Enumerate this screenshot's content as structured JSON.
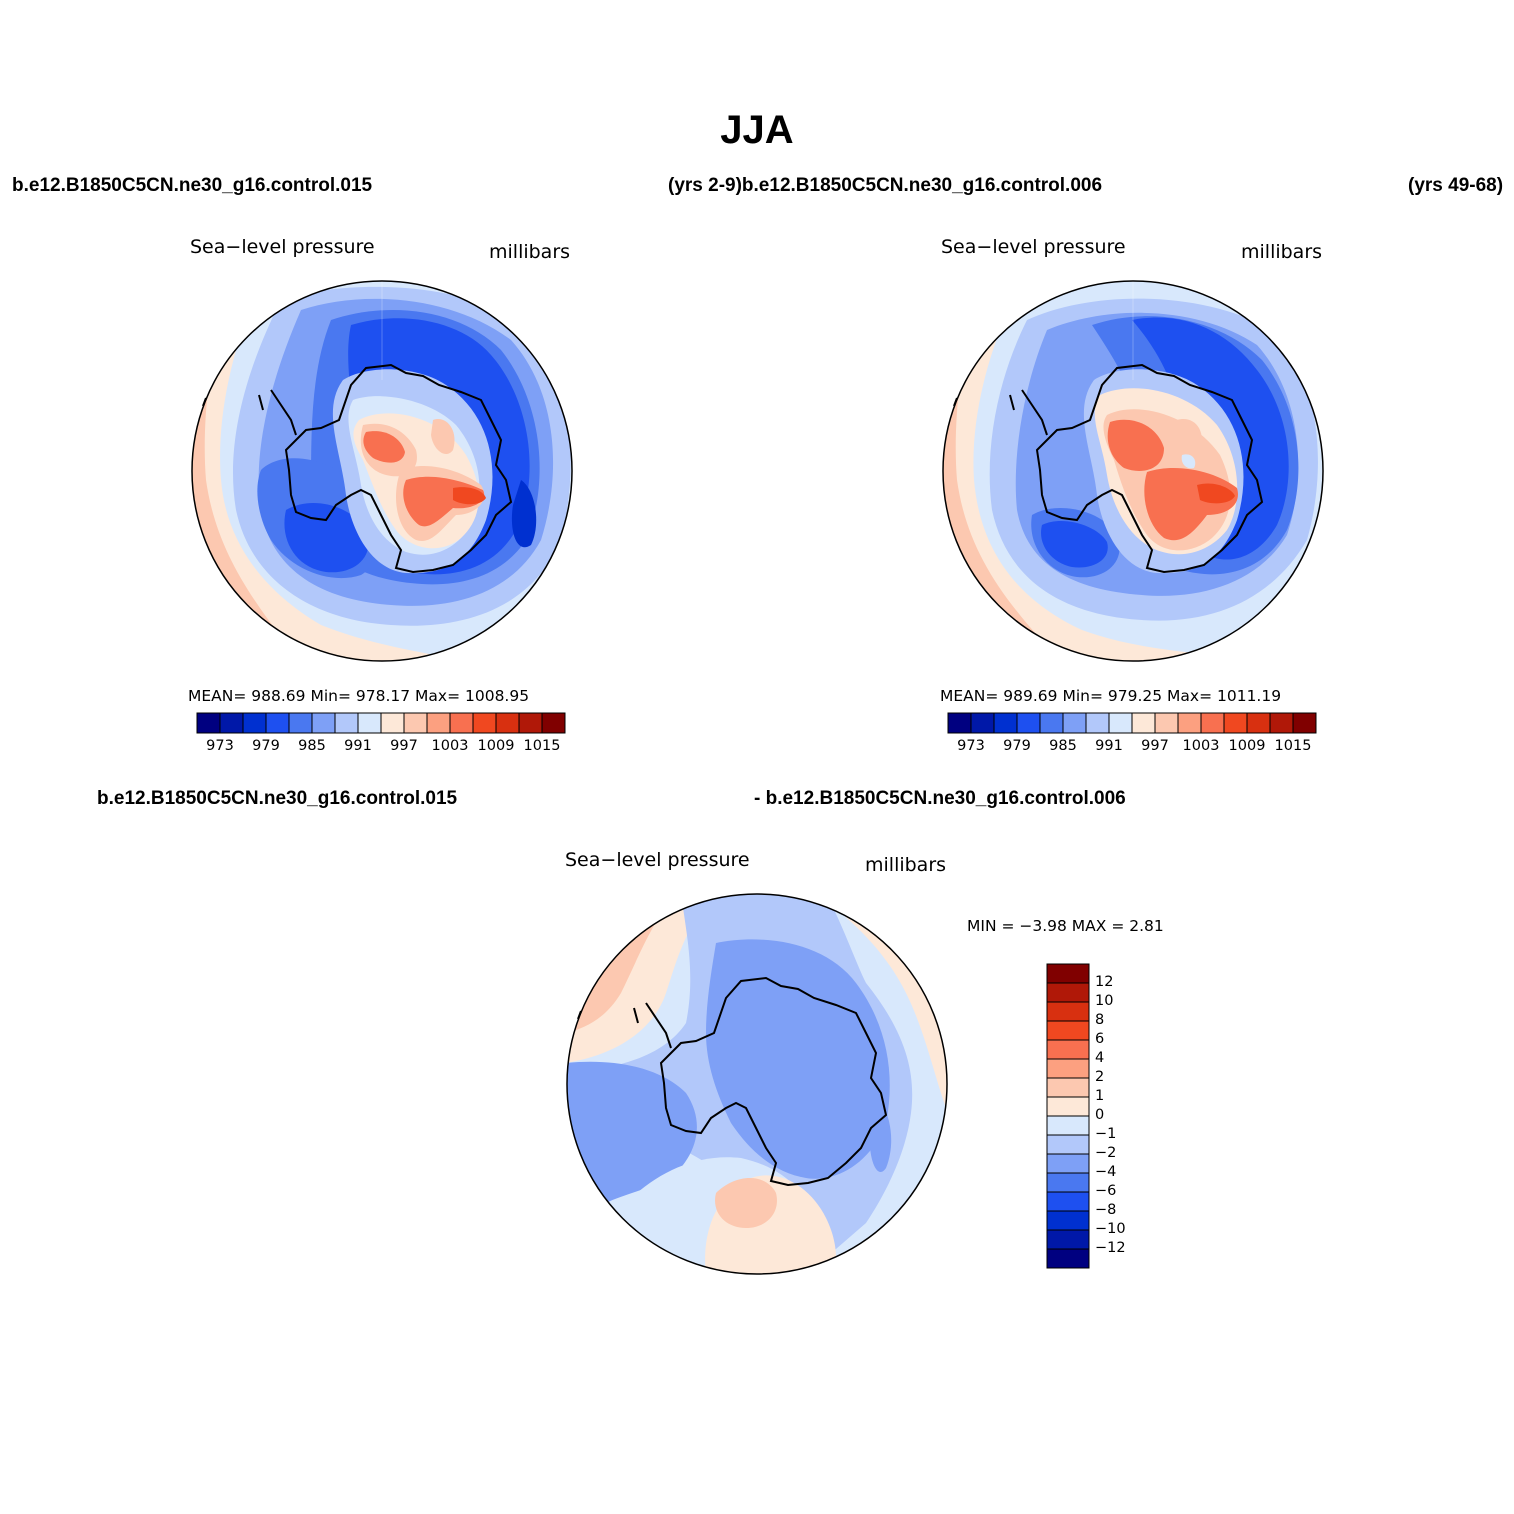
{
  "title": "JJA",
  "top_row": {
    "left_case": "b.e12.B1850C5CN.ne30_g16.control.015",
    "middle_text": "(yrs 2-9)b.e12.B1850C5CN.ne30_g16.control.006",
    "right_text": "(yrs 49-68)"
  },
  "diff_row": {
    "left_case": "b.e12.B1850C5CN.ne30_g16.control.015",
    "right_case": "- b.e12.B1850C5CN.ne30_g16.control.006"
  },
  "panels": [
    {
      "variable": "Sea−level pressure",
      "units": "millibars",
      "stats": "MEAN= 988.69   Min= 978.17   Max= 1008.95"
    },
    {
      "variable": "Sea−level pressure",
      "units": "millibars",
      "stats": "MEAN= 989.69   Min= 979.25   Max= 1011.19"
    },
    {
      "variable": "Sea−level pressure",
      "units": "millibars",
      "stats": "MIN =   −3.98  MAX =    2.81"
    }
  ],
  "colorbar_abs": {
    "colors": [
      "#000080",
      "#0018a8",
      "#0030d0",
      "#1e50f0",
      "#4a78f0",
      "#7ea0f6",
      "#b2c8fa",
      "#d8e8fc",
      "#fde8d8",
      "#fcc8b0",
      "#fca080",
      "#f87050",
      "#f04820",
      "#d83010",
      "#b01808",
      "#800000"
    ],
    "tick_labels": [
      "973",
      "979",
      "985",
      "991",
      "997",
      "1003",
      "1009",
      "1015"
    ]
  },
  "colorbar_diff": {
    "colors_top_to_bottom": [
      "#800000",
      "#b01808",
      "#d83010",
      "#f04820",
      "#f87050",
      "#fca080",
      "#fcc8b0",
      "#fde8d8",
      "#d8e8fc",
      "#b2c8fa",
      "#7ea0f6",
      "#4a78f0",
      "#1e50f0",
      "#0030d0",
      "#0018a8",
      "#000080"
    ],
    "tick_labels": [
      "12",
      "10",
      "8",
      "6",
      "4",
      "2",
      "1",
      "0",
      "−1",
      "−2",
      "−4",
      "−6",
      "−8",
      "−10",
      "−12"
    ]
  },
  "chart_data": {
    "type": "heatmap",
    "title": "JJA",
    "variable": "Sea−level pressure",
    "units": "millibars",
    "projection": "south polar stereographic",
    "maps": [
      {
        "case": "b.e12.B1850C5CN.ne30_g16.control.015 (yrs 2-9)",
        "mean": 988.69,
        "min": 978.17,
        "max": 1008.95,
        "contour_levels": [
          973,
          976,
          979,
          982,
          985,
          988,
          991,
          994,
          997,
          1000,
          1003,
          1006,
          1009,
          1012,
          1015
        ]
      },
      {
        "case": "b.e12.B1850C5CN.ne30_g16.control.006 (yrs 49-68)",
        "mean": 989.69,
        "min": 979.25,
        "max": 1011.19,
        "contour_levels": [
          973,
          976,
          979,
          982,
          985,
          988,
          991,
          994,
          997,
          1000,
          1003,
          1006,
          1009,
          1012,
          1015
        ]
      },
      {
        "case": "b.e12.B1850C5CN.ne30_g16.control.015 - b.e12.B1850C5CN.ne30_g16.control.006",
        "min": -3.98,
        "max": 2.81,
        "contour_levels": [
          -12,
          -10,
          -8,
          -6,
          -4,
          -2,
          -1,
          0,
          1,
          2,
          4,
          6,
          8,
          10,
          12
        ]
      }
    ]
  }
}
